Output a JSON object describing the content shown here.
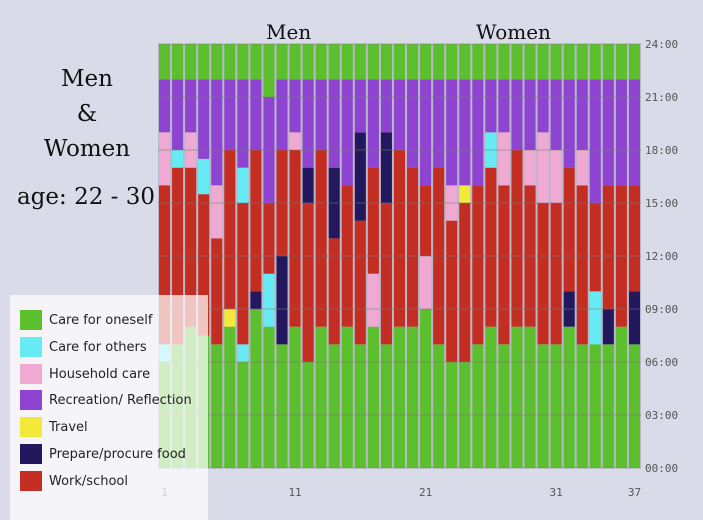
{
  "title": {
    "line1": "Men",
    "line2": "&",
    "line3": "Women",
    "age": "age: 22 - 30"
  },
  "group_labels": {
    "men": "Men",
    "women": "Women"
  },
  "colors": {
    "Care for oneself": "#5cbf2d",
    "Care for others": "#66eaf4",
    "Household care": "#f0a9d2",
    "Recreation/ Reflection": "#8e44d0",
    "Travel": "#f2e93a",
    "Prepare/procure food": "#23175e",
    "Work/school": "#c42e22"
  },
  "chart_data": {
    "type": "bar",
    "stacked": true,
    "orientation": "vertical",
    "x_ticks": [
      "1",
      "11",
      "21",
      "31",
      "37"
    ],
    "y_ticks": [
      "00:00",
      "03:00",
      "06:00",
      "09:00",
      "12:00",
      "15:00",
      "18:00",
      "21:00",
      "24:00"
    ],
    "ylim": [
      0,
      24
    ],
    "grid": true,
    "legend_position": "bottom-left",
    "legend": [
      "Care for oneself",
      "Care for others",
      "Household care",
      "Recreation/ Reflection",
      "Travel",
      "Prepare/procure food",
      "Work/school"
    ],
    "groups": [
      {
        "name": "Men",
        "persons": [
          1,
          20
        ]
      },
      {
        "name": "Women",
        "persons": [
          21,
          37
        ]
      }
    ],
    "persons": [
      {
        "id": 1,
        "segments": [
          [
            "Care for oneself",
            6
          ],
          [
            "Care for others",
            1
          ],
          [
            "Work/school",
            9
          ],
          [
            "Household care",
            3
          ],
          [
            "Recreation/ Reflection",
            3
          ],
          [
            "Care for oneself",
            2
          ]
        ]
      },
      {
        "id": 2,
        "segments": [
          [
            "Care for oneself",
            7
          ],
          [
            "Work/school",
            10
          ],
          [
            "Care for others",
            1
          ],
          [
            "Recreation/ Reflection",
            4
          ],
          [
            "Care for oneself",
            2
          ]
        ]
      },
      {
        "id": 3,
        "segments": [
          [
            "Care for oneself",
            8
          ],
          [
            "Work/school",
            9
          ],
          [
            "Household care",
            2
          ],
          [
            "Recreation/ Reflection",
            3
          ],
          [
            "Care for oneself",
            2
          ]
        ]
      },
      {
        "id": 4,
        "segments": [
          [
            "Care for oneself",
            7.5
          ],
          [
            "Work/school",
            8
          ],
          [
            "Care for others",
            2
          ],
          [
            "Recreation/ Reflection",
            4.5
          ],
          [
            "Care for oneself",
            2
          ]
        ]
      },
      {
        "id": 5,
        "segments": [
          [
            "Care for oneself",
            7
          ],
          [
            "Work/school",
            6
          ],
          [
            "Household care",
            3
          ],
          [
            "Recreation/ Reflection",
            6
          ],
          [
            "Care for oneself",
            2
          ]
        ]
      },
      {
        "id": 6,
        "segments": [
          [
            "Care for oneself",
            8
          ],
          [
            "Travel",
            1
          ],
          [
            "Work/school",
            9
          ],
          [
            "Recreation/ Reflection",
            4
          ],
          [
            "Care for oneself",
            2
          ]
        ]
      },
      {
        "id": 7,
        "segments": [
          [
            "Care for oneself",
            6
          ],
          [
            "Care for others",
            1
          ],
          [
            "Work/school",
            8
          ],
          [
            "Care for others",
            2
          ],
          [
            "Recreation/ Reflection",
            5
          ],
          [
            "Care for oneself",
            2
          ]
        ]
      },
      {
        "id": 8,
        "segments": [
          [
            "Care for oneself",
            9
          ],
          [
            "Prepare/procure food",
            1
          ],
          [
            "Work/school",
            8
          ],
          [
            "Recreation/ Reflection",
            4
          ],
          [
            "Care for oneself",
            2
          ]
        ]
      },
      {
        "id": 9,
        "segments": [
          [
            "Care for oneself",
            8
          ],
          [
            "Care for others",
            3
          ],
          [
            "Work/school",
            4
          ],
          [
            "Recreation/ Reflection",
            6
          ],
          [
            "Care for oneself",
            3
          ]
        ]
      },
      {
        "id": 10,
        "segments": [
          [
            "Care for oneself",
            7
          ],
          [
            "Prepare/procure food",
            5
          ],
          [
            "Work/school",
            6
          ],
          [
            "Recreation/ Reflection",
            4
          ],
          [
            "Care for oneself",
            2
          ]
        ]
      },
      {
        "id": 11,
        "segments": [
          [
            "Care for oneself",
            8
          ],
          [
            "Work/school",
            10
          ],
          [
            "Household care",
            1
          ],
          [
            "Recreation/ Reflection",
            3
          ],
          [
            "Care for oneself",
            2
          ]
        ]
      },
      {
        "id": 12,
        "segments": [
          [
            "Care for oneself",
            6
          ],
          [
            "Work/school",
            9
          ],
          [
            "Prepare/procure food",
            2
          ],
          [
            "Recreation/ Reflection",
            5
          ],
          [
            "Care for oneself",
            2
          ]
        ]
      },
      {
        "id": 13,
        "segments": [
          [
            "Care for oneself",
            8
          ],
          [
            "Work/school",
            10
          ],
          [
            "Recreation/ Reflection",
            4
          ],
          [
            "Care for oneself",
            2
          ]
        ]
      },
      {
        "id": 14,
        "segments": [
          [
            "Care for oneself",
            7
          ],
          [
            "Work/school",
            6
          ],
          [
            "Prepare/procure food",
            4
          ],
          [
            "Recreation/ Reflection",
            5
          ],
          [
            "Care for oneself",
            2
          ]
        ]
      },
      {
        "id": 15,
        "segments": [
          [
            "Care for oneself",
            8
          ],
          [
            "Work/school",
            8
          ],
          [
            "Recreation/ Reflection",
            6
          ],
          [
            "Care for oneself",
            2
          ]
        ]
      },
      {
        "id": 16,
        "segments": [
          [
            "Care for oneself",
            7
          ],
          [
            "Work/school",
            7
          ],
          [
            "Prepare/procure food",
            5
          ],
          [
            "Recreation/ Reflection",
            3
          ],
          [
            "Care for oneself",
            2
          ]
        ]
      },
      {
        "id": 17,
        "segments": [
          [
            "Care for oneself",
            8
          ],
          [
            "Household care",
            3
          ],
          [
            "Work/school",
            6
          ],
          [
            "Recreation/ Reflection",
            5
          ],
          [
            "Care for oneself",
            2
          ]
        ]
      },
      {
        "id": 18,
        "segments": [
          [
            "Care for oneself",
            7
          ],
          [
            "Work/school",
            8
          ],
          [
            "Prepare/procure food",
            4
          ],
          [
            "Recreation/ Reflection",
            3
          ],
          [
            "Care for oneself",
            2
          ]
        ]
      },
      {
        "id": 19,
        "segments": [
          [
            "Care for oneself",
            8
          ],
          [
            "Work/school",
            10
          ],
          [
            "Recreation/ Reflection",
            4
          ],
          [
            "Care for oneself",
            2
          ]
        ]
      },
      {
        "id": 20,
        "segments": [
          [
            "Care for oneself",
            8
          ],
          [
            "Work/school",
            9
          ],
          [
            "Recreation/ Reflection",
            5
          ],
          [
            "Care for oneself",
            2
          ]
        ]
      },
      {
        "id": 21,
        "segments": [
          [
            "Care for oneself",
            9
          ],
          [
            "Household care",
            3
          ],
          [
            "Work/school",
            4
          ],
          [
            "Recreation/ Reflection",
            6
          ],
          [
            "Care for oneself",
            2
          ]
        ]
      },
      {
        "id": 22,
        "segments": [
          [
            "Care for oneself",
            7
          ],
          [
            "Work/school",
            10
          ],
          [
            "Recreation/ Reflection",
            5
          ],
          [
            "Care for oneself",
            2
          ]
        ]
      },
      {
        "id": 23,
        "segments": [
          [
            "Care for oneself",
            6
          ],
          [
            "Work/school",
            8
          ],
          [
            "Household care",
            2
          ],
          [
            "Recreation/ Reflection",
            6
          ],
          [
            "Care for oneself",
            2
          ]
        ]
      },
      {
        "id": 24,
        "segments": [
          [
            "Care for oneself",
            6
          ],
          [
            "Work/school",
            9
          ],
          [
            "Travel",
            1
          ],
          [
            "Recreation/ Reflection",
            6
          ],
          [
            "Care for oneself",
            2
          ]
        ]
      },
      {
        "id": 25,
        "segments": [
          [
            "Care for oneself",
            7
          ],
          [
            "Work/school",
            9
          ],
          [
            "Recreation/ Reflection",
            6
          ],
          [
            "Care for oneself",
            2
          ]
        ]
      },
      {
        "id": 26,
        "segments": [
          [
            "Care for oneself",
            8
          ],
          [
            "Work/school",
            9
          ],
          [
            "Care for others",
            2
          ],
          [
            "Recreation/ Reflection",
            3
          ],
          [
            "Care for oneself",
            2
          ]
        ]
      },
      {
        "id": 27,
        "segments": [
          [
            "Care for oneself",
            7
          ],
          [
            "Work/school",
            9
          ],
          [
            "Household care",
            3
          ],
          [
            "Recreation/ Reflection",
            3
          ],
          [
            "Care for oneself",
            2
          ]
        ]
      },
      {
        "id": 28,
        "segments": [
          [
            "Care for oneself",
            8
          ],
          [
            "Work/school",
            10
          ],
          [
            "Recreation/ Reflection",
            4
          ],
          [
            "Care for oneself",
            2
          ]
        ]
      },
      {
        "id": 29,
        "segments": [
          [
            "Care for oneself",
            8
          ],
          [
            "Work/school",
            8
          ],
          [
            "Household care",
            2
          ],
          [
            "Recreation/ Reflection",
            4
          ],
          [
            "Care for oneself",
            2
          ]
        ]
      },
      {
        "id": 30,
        "segments": [
          [
            "Care for oneself",
            7
          ],
          [
            "Work/school",
            8
          ],
          [
            "Household care",
            4
          ],
          [
            "Recreation/ Reflection",
            3
          ],
          [
            "Care for oneself",
            2
          ]
        ]
      },
      {
        "id": 31,
        "segments": [
          [
            "Care for oneself",
            7
          ],
          [
            "Work/school",
            8
          ],
          [
            "Household care",
            3
          ],
          [
            "Recreation/ Reflection",
            4
          ],
          [
            "Care for oneself",
            2
          ]
        ]
      },
      {
        "id": 32,
        "segments": [
          [
            "Care for oneself",
            8
          ],
          [
            "Prepare/procure food",
            2
          ],
          [
            "Work/school",
            7
          ],
          [
            "Recreation/ Reflection",
            5
          ],
          [
            "Care for oneself",
            2
          ]
        ]
      },
      {
        "id": 33,
        "segments": [
          [
            "Care for oneself",
            7
          ],
          [
            "Work/school",
            9
          ],
          [
            "Household care",
            2
          ],
          [
            "Recreation/ Reflection",
            4
          ],
          [
            "Care for oneself",
            2
          ]
        ]
      },
      {
        "id": 34,
        "segments": [
          [
            "Care for oneself",
            7
          ],
          [
            "Care for others",
            3
          ],
          [
            "Work/school",
            5
          ],
          [
            "Recreation/ Reflection",
            7
          ],
          [
            "Care for oneself",
            2
          ]
        ]
      },
      {
        "id": 35,
        "segments": [
          [
            "Care for oneself",
            7
          ],
          [
            "Prepare/procure food",
            2
          ],
          [
            "Work/school",
            7
          ],
          [
            "Recreation/ Reflection",
            6
          ],
          [
            "Care for oneself",
            2
          ]
        ]
      },
      {
        "id": 36,
        "segments": [
          [
            "Care for oneself",
            8
          ],
          [
            "Work/school",
            8
          ],
          [
            "Recreation/ Reflection",
            6
          ],
          [
            "Care for oneself",
            2
          ]
        ]
      },
      {
        "id": 37,
        "segments": [
          [
            "Care for oneself",
            7
          ],
          [
            "Prepare/procure food",
            3
          ],
          [
            "Work/school",
            6
          ],
          [
            "Recreation/ Reflection",
            6
          ],
          [
            "Care for oneself",
            2
          ]
        ]
      }
    ]
  }
}
